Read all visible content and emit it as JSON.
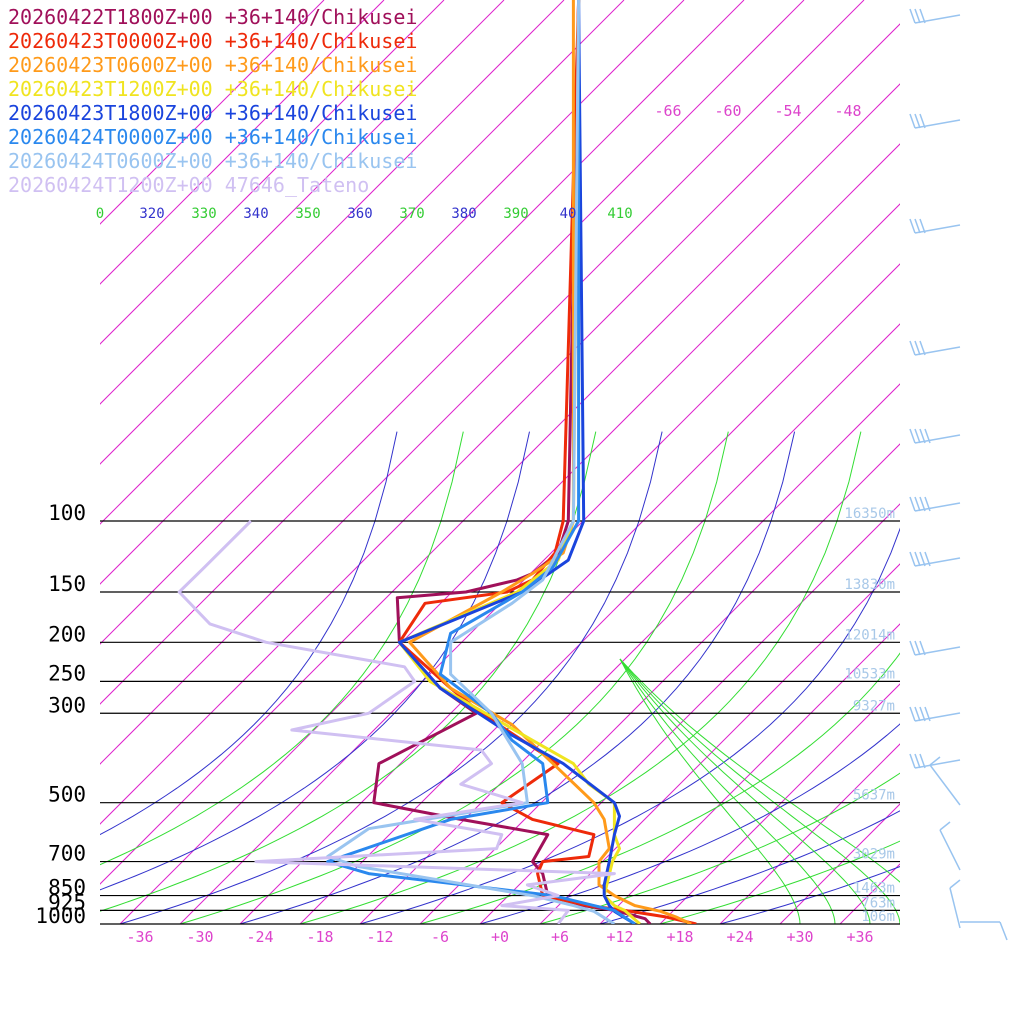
{
  "legend": [
    {
      "label": "20260422T1800Z+00 +36+140/Chikusei",
      "color": "#a0105a"
    },
    {
      "label": "20260423T0000Z+00 +36+140/Chikusei",
      "color": "#ee2a0a"
    },
    {
      "label": "20260423T0600Z+00 +36+140/Chikusei",
      "color": "#ff9a1a"
    },
    {
      "label": "20260423T1200Z+00 +36+140/Chikusei",
      "color": "#f0e420"
    },
    {
      "label": "20260423T1800Z+00 +36+140/Chikusei",
      "color": "#1a44dd"
    },
    {
      "label": "20260424T0000Z+00 +36+140/Chikusei",
      "color": "#2a88ee"
    },
    {
      "label": "20260424T0600Z+00 +36+140/Chikusei",
      "color": "#99c4f0"
    },
    {
      "label": "20260424T1200Z+00 47646_Tateno",
      "color": "#d0c0f2"
    }
  ],
  "chart_data": {
    "type": "line",
    "subtype": "skew-t log-p sounding",
    "pressure_levels": [
      100,
      150,
      200,
      250,
      300,
      500,
      700,
      850,
      925,
      1000
    ],
    "pressure_labels": [
      "100",
      "150",
      "200",
      "250",
      "300",
      "500",
      "700",
      "850",
      "925",
      "1000"
    ],
    "x_ticks": [
      "-36",
      "-30",
      "-24",
      "-18",
      "-12",
      "-6",
      "+0",
      "+6",
      "+12",
      "+18",
      "+24",
      "+30",
      "+36"
    ],
    "x_tick_values": [
      -36,
      -30,
      -24,
      -18,
      -12,
      -6,
      0,
      6,
      12,
      18,
      24,
      30,
      36
    ],
    "upper_temp_labels": [
      "-66",
      "-60",
      "-54",
      "-48"
    ],
    "theta_labels": [
      {
        "text": "0",
        "color": "#33cc33"
      },
      {
        "text": "320",
        "color": "#3333cc"
      },
      {
        "text": "330",
        "color": "#33cc33"
      },
      {
        "text": "340",
        "color": "#3333cc"
      },
      {
        "text": "350",
        "color": "#33cc33"
      },
      {
        "text": "360",
        "color": "#3333cc"
      },
      {
        "text": "370",
        "color": "#33cc33"
      },
      {
        "text": "380",
        "color": "#3333cc"
      },
      {
        "text": "390",
        "color": "#33cc33"
      },
      {
        "text": "40",
        "color": "#3333cc"
      },
      {
        "text": "410",
        "color": "#33cc33"
      }
    ],
    "height_labels": [
      "16350m",
      "13830m",
      "12014m",
      "10533m",
      "9327m",
      "5637m",
      "3029m",
      "1463m",
      "763m",
      "106m"
    ],
    "series": [
      {
        "name": "20260422T1800Z+00 +36+140/Chikusei",
        "color": "#a0105a",
        "points": [
          [
            0.565,
            -10
          ],
          [
            0.555,
            100
          ],
          [
            0.545,
            120
          ],
          [
            0.52,
            135
          ],
          [
            0.505,
            140
          ],
          [
            0.455,
            150
          ],
          [
            0.388,
            155
          ],
          [
            0.39,
            200
          ],
          [
            0.43,
            260
          ],
          [
            0.465,
            300
          ],
          [
            0.37,
            400
          ],
          [
            0.365,
            500
          ],
          [
            0.45,
            550
          ],
          [
            0.535,
            600
          ],
          [
            0.52,
            700
          ],
          [
            0.53,
            750
          ],
          [
            0.535,
            850
          ],
          [
            0.57,
            900
          ],
          [
            0.6,
            925
          ],
          [
            0.63,
            970
          ],
          [
            0.635,
            1000
          ]
        ]
      },
      {
        "name": "20260423T0000Z+00 +36+140/Chikusei",
        "color": "#ee2a0a",
        "points": [
          [
            0.565,
            -10
          ],
          [
            0.55,
            100
          ],
          [
            0.542,
            120
          ],
          [
            0.52,
            140
          ],
          [
            0.495,
            150
          ],
          [
            0.415,
            160
          ],
          [
            0.39,
            200
          ],
          [
            0.44,
            260
          ],
          [
            0.47,
            300
          ],
          [
            0.51,
            350
          ],
          [
            0.545,
            400
          ],
          [
            0.49,
            500
          ],
          [
            0.52,
            550
          ],
          [
            0.58,
            600
          ],
          [
            0.575,
            680
          ],
          [
            0.53,
            700
          ],
          [
            0.525,
            750
          ],
          [
            0.53,
            850
          ],
          [
            0.575,
            900
          ],
          [
            0.61,
            925
          ],
          [
            0.65,
            960
          ],
          [
            0.68,
            1000
          ]
        ]
      },
      {
        "name": "20260423T0600Z+00 +36+140/Chikusei",
        "color": "#ff9a1a",
        "points": [
          [
            0.56,
            -10
          ],
          [
            0.56,
            100
          ],
          [
            0.55,
            120
          ],
          [
            0.52,
            135
          ],
          [
            0.49,
            150
          ],
          [
            0.4,
            200
          ],
          [
            0.44,
            260
          ],
          [
            0.5,
            320
          ],
          [
            0.54,
            400
          ],
          [
            0.58,
            500
          ],
          [
            0.59,
            550
          ],
          [
            0.595,
            650
          ],
          [
            0.585,
            700
          ],
          [
            0.585,
            800
          ],
          [
            0.6,
            850
          ],
          [
            0.62,
            900
          ],
          [
            0.645,
            930
          ],
          [
            0.66,
            960
          ],
          [
            0.675,
            1000
          ]
        ]
      },
      {
        "name": "20260423T1200Z+00 +36+140/Chikusei",
        "color": "#f0e420",
        "points": [
          [
            0.565,
            -10
          ],
          [
            0.56,
            100
          ],
          [
            0.545,
            125
          ],
          [
            0.505,
            150
          ],
          [
            0.39,
            200
          ],
          [
            0.42,
            250
          ],
          [
            0.52,
            350
          ],
          [
            0.56,
            400
          ],
          [
            0.575,
            450
          ],
          [
            0.6,
            500
          ],
          [
            0.6,
            600
          ],
          [
            0.605,
            650
          ],
          [
            0.598,
            700
          ],
          [
            0.59,
            850
          ],
          [
            0.6,
            900
          ],
          [
            0.61,
            925
          ],
          [
            0.625,
            1000
          ]
        ]
      },
      {
        "name": "20260423T1800Z+00 +36+140/Chikusei",
        "color": "#1a44dd",
        "points": [
          [
            0.565,
            -10
          ],
          [
            0.57,
            100
          ],
          [
            0.555,
            125
          ],
          [
            0.51,
            150
          ],
          [
            0.39,
            200
          ],
          [
            0.43,
            260
          ],
          [
            0.5,
            340
          ],
          [
            0.55,
            400
          ],
          [
            0.6,
            500
          ],
          [
            0.605,
            540
          ],
          [
            0.6,
            600
          ],
          [
            0.595,
            700
          ],
          [
            0.59,
            800
          ],
          [
            0.59,
            850
          ],
          [
            0.595,
            900
          ],
          [
            0.6,
            930
          ],
          [
            0.62,
            1000
          ]
        ]
      },
      {
        "name": "20260424T0000Z+00 +36+140/Chikusei",
        "color": "#2a88ee",
        "points": [
          [
            0.565,
            -10
          ],
          [
            0.565,
            100
          ],
          [
            0.54,
            130
          ],
          [
            0.51,
            150
          ],
          [
            0.44,
            190
          ],
          [
            0.43,
            240
          ],
          [
            0.48,
            300
          ],
          [
            0.5,
            350
          ],
          [
            0.53,
            400
          ],
          [
            0.535,
            500
          ],
          [
            0.44,
            550
          ],
          [
            0.32,
            700
          ],
          [
            0.36,
            750
          ],
          [
            0.54,
            850
          ],
          [
            0.58,
            900
          ],
          [
            0.6,
            925
          ],
          [
            0.62,
            1000
          ]
        ]
      },
      {
        "name": "20260424T0600Z+00 +36+140/Chikusei",
        "color": "#99c4f0",
        "points": [
          [
            0.565,
            -10
          ],
          [
            0.56,
            100
          ],
          [
            0.53,
            140
          ],
          [
            0.5,
            160
          ],
          [
            0.44,
            200
          ],
          [
            0.44,
            240
          ],
          [
            0.48,
            300
          ],
          [
            0.51,
            400
          ],
          [
            0.515,
            500
          ],
          [
            0.36,
            580
          ],
          [
            0.32,
            680
          ],
          [
            0.35,
            720
          ],
          [
            0.52,
            850
          ],
          [
            0.56,
            900
          ],
          [
            0.58,
            930
          ],
          [
            0.6,
            1000
          ]
        ]
      },
      {
        "name": "20260424T1200Z+00 47646_Tateno",
        "color": "#d0c0f2",
        "points": [
          [
            0.245,
            100
          ],
          [
            0.2,
            130
          ],
          [
            0.175,
            150
          ],
          [
            0.205,
            180
          ],
          [
            0.26,
            200
          ],
          [
            0.395,
            230
          ],
          [
            0.405,
            250
          ],
          [
            0.36,
            300
          ],
          [
            0.285,
            330
          ],
          [
            0.47,
            370
          ],
          [
            0.48,
            400
          ],
          [
            0.45,
            450
          ],
          [
            0.51,
            500
          ],
          [
            0.405,
            550
          ],
          [
            0.49,
            600
          ],
          [
            0.485,
            650
          ],
          [
            0.25,
            700
          ],
          [
            0.6,
            750
          ],
          [
            0.515,
            800
          ],
          [
            0.545,
            850
          ],
          [
            0.49,
            900
          ],
          [
            0.555,
            925
          ],
          [
            0.545,
            1000
          ]
        ]
      }
    ],
    "wind_barbs": [
      {
        "level": "top",
        "type": "pennant-flag"
      },
      {
        "level": "mid-high",
        "type": "multi-barb"
      },
      {
        "level": "100",
        "type": "barb"
      },
      {
        "level": "150",
        "type": "barb"
      },
      {
        "level": "200",
        "type": "multi-barb"
      },
      {
        "level": "250",
        "type": "multi-barb"
      },
      {
        "level": "300",
        "type": "multi-barb"
      },
      {
        "level": "400",
        "type": "barb"
      },
      {
        "level": "500",
        "type": "multi-barb"
      },
      {
        "level": "600",
        "type": "barb"
      },
      {
        "level": "700",
        "type": "barb"
      },
      {
        "level": "850",
        "type": "barb"
      },
      {
        "level": "1000",
        "type": "barb"
      }
    ]
  }
}
